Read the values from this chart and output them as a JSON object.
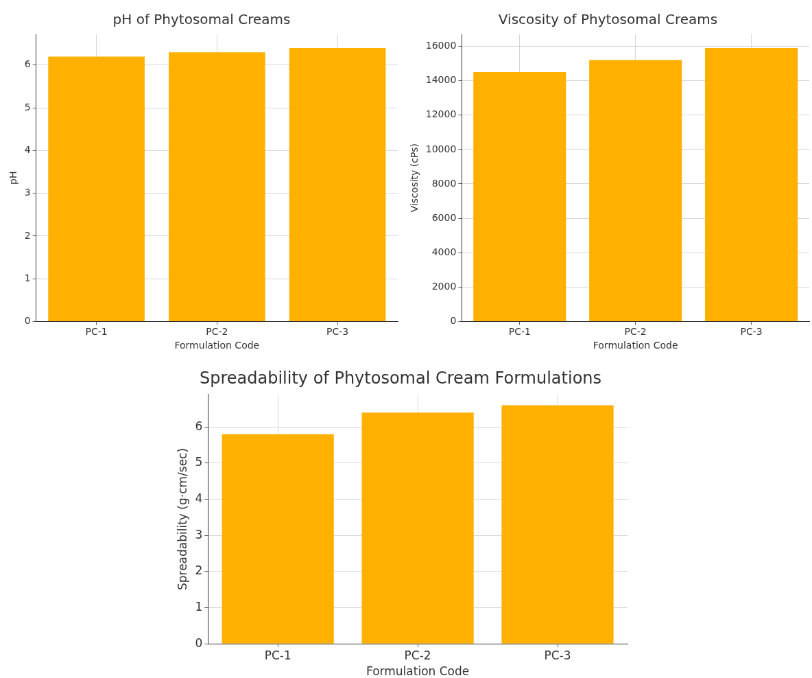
{
  "chart_data": [
    {
      "type": "bar",
      "title": "pH of Phytosomal Creams",
      "xlabel": "Formulation Code",
      "ylabel": "pH",
      "categories": [
        "PC-1",
        "PC-2",
        "PC-3"
      ],
      "values": [
        6.2,
        6.3,
        6.4
      ],
      "color": "#ffb000",
      "ylim": [
        0,
        6.72
      ],
      "yticks": [
        0,
        1,
        2,
        3,
        4,
        5,
        6
      ],
      "grid": true
    },
    {
      "type": "bar",
      "title": "Viscosity of Phytosomal Creams",
      "xlabel": "Formulation Code",
      "ylabel": "Viscosity (cPs)",
      "categories": [
        "PC-1",
        "PC-2",
        "PC-3"
      ],
      "values": [
        14500,
        15200,
        15900
      ],
      "color": "#ffb000",
      "ylim": [
        0,
        16700
      ],
      "yticks": [
        0,
        2000,
        4000,
        6000,
        8000,
        10000,
        12000,
        14000,
        16000
      ],
      "grid": true
    },
    {
      "type": "bar",
      "title": "Spreadability of Phytosomal Cream Formulations",
      "xlabel": "Formulation Code",
      "ylabel": "Spreadability (g·cm/sec)",
      "categories": [
        "PC-1",
        "PC-2",
        "PC-3"
      ],
      "values": [
        5.8,
        6.4,
        6.6
      ],
      "color": "#ffb000",
      "ylim": [
        0,
        6.9
      ],
      "yticks": [
        0,
        1,
        2,
        3,
        4,
        5,
        6
      ],
      "grid": true
    }
  ]
}
